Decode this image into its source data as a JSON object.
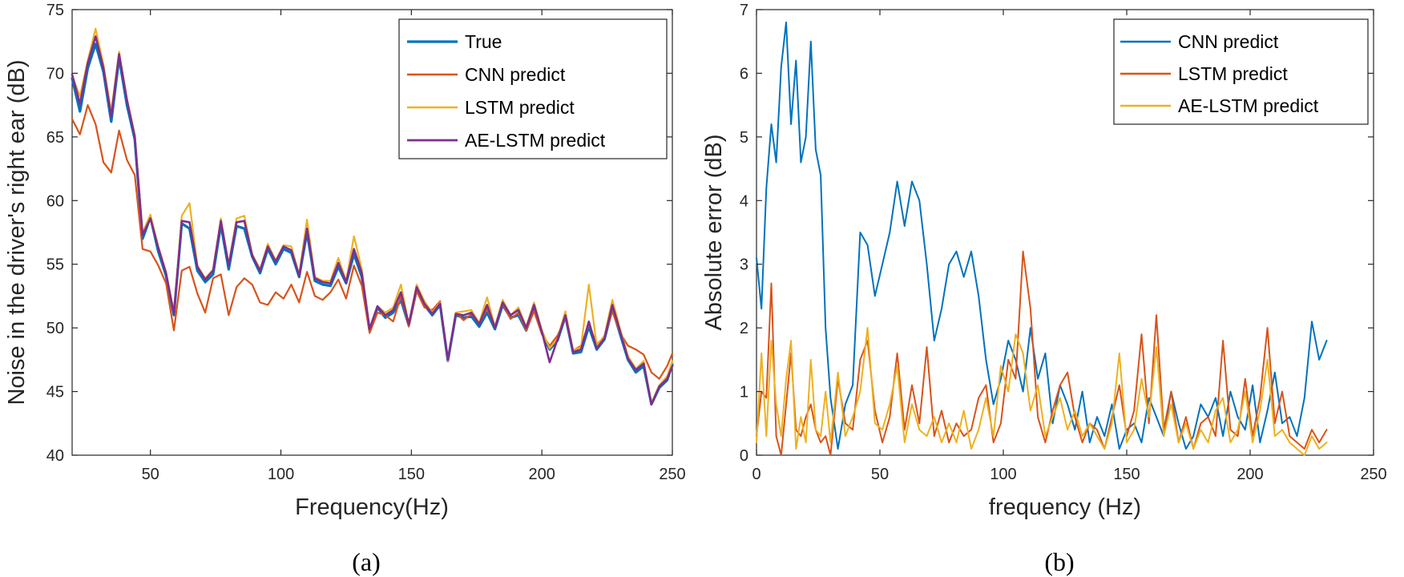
{
  "chart_data": [
    {
      "type": "line",
      "caption": "(a)",
      "xlabel": "Frequency(Hz)",
      "ylabel": "Noise in the driver's right ear (dB)",
      "xlim": [
        20,
        250
      ],
      "ylim": [
        40,
        75
      ],
      "xticks": [
        50,
        100,
        150,
        200,
        250
      ],
      "yticks": [
        40,
        45,
        50,
        55,
        60,
        65,
        70,
        75
      ],
      "grid": false,
      "legend_position": "top-right",
      "x": [
        20,
        23,
        26,
        29,
        32,
        35,
        38,
        41,
        44,
        47,
        50,
        53,
        56,
        59,
        62,
        65,
        68,
        71,
        74,
        77,
        80,
        83,
        86,
        89,
        92,
        95,
        98,
        101,
        104,
        107,
        110,
        113,
        116,
        119,
        122,
        125,
        128,
        131,
        134,
        137,
        140,
        143,
        146,
        149,
        152,
        155,
        158,
        161,
        164,
        167,
        170,
        173,
        176,
        179,
        182,
        185,
        188,
        191,
        194,
        197,
        200,
        203,
        206,
        209,
        212,
        215,
        218,
        221,
        224,
        227,
        230,
        233,
        236,
        239,
        242,
        245,
        248,
        250
      ],
      "series": [
        {
          "name": "True",
          "color": "#0072BD",
          "width": 3.2,
          "values": [
            69.6,
            67.0,
            70.4,
            72.3,
            70.1,
            66.2,
            71.2,
            67.5,
            64.8,
            57.0,
            58.7,
            56.0,
            54.1,
            51.0,
            58.2,
            57.8,
            54.5,
            53.6,
            54.2,
            58.1,
            54.6,
            58.0,
            57.8,
            55.6,
            54.3,
            56.2,
            55.0,
            56.2,
            55.9,
            54.0,
            57.5,
            53.7,
            53.4,
            53.3,
            54.8,
            53.5,
            55.8,
            54.0,
            49.8,
            51.6,
            50.8,
            51.2,
            52.2,
            50.2,
            53.0,
            51.8,
            51.0,
            51.8,
            47.4,
            51.0,
            50.8,
            50.9,
            50.1,
            51.2,
            49.9,
            51.8,
            50.8,
            51.0,
            49.8,
            51.5,
            49.6,
            48.3,
            49.0,
            50.9,
            48.0,
            48.1,
            50.1,
            48.3,
            49.1,
            51.5,
            49.5,
            47.5,
            46.5,
            47.0,
            44.0,
            45.3,
            45.9,
            47.1
          ]
        },
        {
          "name": "CNN predict",
          "color": "#D95319",
          "width": 2.2,
          "values": [
            66.4,
            65.2,
            67.5,
            66.0,
            63.0,
            62.2,
            65.5,
            63.2,
            62.0,
            56.2,
            56.0,
            54.9,
            53.5,
            49.8,
            54.5,
            54.8,
            52.7,
            51.2,
            53.9,
            54.2,
            51.0,
            53.2,
            53.9,
            53.4,
            52.0,
            51.8,
            52.8,
            52.3,
            53.4,
            52.0,
            54.4,
            52.5,
            52.2,
            52.8,
            53.8,
            52.3,
            54.9,
            53.3,
            49.6,
            51.2,
            51.0,
            50.5,
            52.5,
            50.1,
            52.9,
            51.6,
            51.4,
            52.1,
            47.4,
            51.2,
            50.6,
            51.1,
            50.3,
            51.5,
            50.1,
            51.9,
            50.7,
            51.2,
            49.8,
            51.3,
            49.5,
            48.6,
            49.4,
            50.8,
            48.2,
            48.6,
            50.3,
            48.7,
            49.3,
            51.3,
            49.6,
            48.6,
            48.3,
            47.9,
            46.5,
            46.0,
            47.0,
            48.0
          ]
        },
        {
          "name": "LSTM predict",
          "color": "#EDB120",
          "width": 2.2,
          "values": [
            69.8,
            68.2,
            71.0,
            73.5,
            70.7,
            67.0,
            71.7,
            68.0,
            65.2,
            57.5,
            58.9,
            56.4,
            54.4,
            51.2,
            58.8,
            59.8,
            54.9,
            53.9,
            54.6,
            58.6,
            55.0,
            58.6,
            58.8,
            55.8,
            54.6,
            56.6,
            55.3,
            56.5,
            56.4,
            54.2,
            58.5,
            54.0,
            53.7,
            53.7,
            55.5,
            53.7,
            57.2,
            54.6,
            50.0,
            51.7,
            51.2,
            51.6,
            53.4,
            50.3,
            53.4,
            52.1,
            51.2,
            52.0,
            47.4,
            51.2,
            51.3,
            51.4,
            50.4,
            52.4,
            50.1,
            52.2,
            51.0,
            51.6,
            50.1,
            52.0,
            49.8,
            48.4,
            49.2,
            51.3,
            48.2,
            48.5,
            53.4,
            48.6,
            49.4,
            52.2,
            49.9,
            47.8,
            46.8,
            47.4,
            44.1,
            45.5,
            46.2,
            47.4
          ]
        },
        {
          "name": "AE-LSTM predict",
          "color": "#7E2F8E",
          "width": 2.6,
          "values": [
            69.9,
            67.6,
            70.8,
            72.9,
            70.4,
            66.6,
            71.5,
            67.9,
            65.0,
            57.3,
            58.6,
            56.3,
            54.3,
            51.1,
            58.4,
            58.3,
            54.8,
            53.8,
            54.5,
            58.4,
            54.9,
            58.3,
            58.4,
            55.7,
            54.5,
            56.4,
            55.2,
            56.4,
            56.1,
            54.1,
            57.8,
            53.9,
            53.6,
            53.5,
            55.1,
            53.6,
            56.2,
            54.3,
            49.9,
            51.7,
            51.0,
            51.4,
            52.8,
            50.3,
            53.2,
            51.9,
            51.1,
            51.9,
            47.5,
            51.1,
            51.0,
            51.2,
            50.3,
            51.8,
            50.0,
            52.0,
            51.0,
            51.4,
            50.0,
            51.8,
            49.7,
            47.3,
            49.1,
            51.0,
            48.1,
            48.3,
            50.5,
            48.4,
            49.2,
            51.8,
            49.7,
            47.6,
            46.7,
            47.2,
            44.0,
            45.4,
            46.0,
            47.0
          ]
        }
      ]
    },
    {
      "type": "line",
      "caption": "(b)",
      "xlabel": "frequency (Hz)",
      "ylabel": "Absolute error (dB)",
      "xlim": [
        0,
        250
      ],
      "ylim": [
        0,
        7
      ],
      "xticks": [
        0,
        50,
        100,
        150,
        200,
        250
      ],
      "yticks": [
        0,
        1,
        2,
        3,
        4,
        5,
        6,
        7
      ],
      "grid": false,
      "legend_position": "top-right",
      "x": [
        0,
        2,
        4,
        6,
        8,
        10,
        12,
        14,
        16,
        18,
        20,
        22,
        24,
        26,
        28,
        30,
        33,
        36,
        39,
        42,
        45,
        48,
        51,
        54,
        57,
        60,
        63,
        66,
        69,
        72,
        75,
        78,
        81,
        84,
        87,
        90,
        93,
        96,
        99,
        102,
        105,
        108,
        111,
        114,
        117,
        120,
        123,
        126,
        129,
        132,
        135,
        138,
        141,
        144,
        147,
        150,
        153,
        156,
        159,
        162,
        165,
        168,
        171,
        174,
        177,
        180,
        183,
        186,
        189,
        192,
        195,
        198,
        201,
        204,
        207,
        210,
        213,
        216,
        219,
        222,
        225,
        228,
        231
      ],
      "series": [
        {
          "name": "CNN predict",
          "color": "#0072BD",
          "width": 2.0,
          "values": [
            3.1,
            2.3,
            4.2,
            5.2,
            4.6,
            6.1,
            6.8,
            5.2,
            6.2,
            4.6,
            5.0,
            6.5,
            4.8,
            4.4,
            2.0,
            0.9,
            0.1,
            0.8,
            1.1,
            3.5,
            3.3,
            2.5,
            3.0,
            3.5,
            4.3,
            3.6,
            4.3,
            4.0,
            3.0,
            1.8,
            2.3,
            3.0,
            3.2,
            2.8,
            3.2,
            2.5,
            1.5,
            0.8,
            1.2,
            1.8,
            1.5,
            1.0,
            2.0,
            1.2,
            1.6,
            0.5,
            1.1,
            0.8,
            0.4,
            1.0,
            0.2,
            0.6,
            0.3,
            0.8,
            0.1,
            0.4,
            0.5,
            0.2,
            0.9,
            0.6,
            0.3,
            1.0,
            0.5,
            0.1,
            0.3,
            0.8,
            0.6,
            0.9,
            0.3,
            1.0,
            0.6,
            0.4,
            1.1,
            0.2,
            0.7,
            1.3,
            0.5,
            0.6,
            0.3,
            0.9,
            2.1,
            1.5,
            1.8
          ]
        },
        {
          "name": "LSTM predict",
          "color": "#D95319",
          "width": 2.0,
          "values": [
            0.3,
            1.0,
            0.9,
            2.7,
            0.3,
            0.0,
            0.8,
            1.6,
            0.4,
            0.3,
            0.6,
            0.8,
            0.4,
            0.2,
            0.3,
            0.0,
            1.2,
            0.5,
            0.4,
            1.5,
            1.8,
            0.7,
            0.2,
            0.6,
            1.6,
            0.4,
            1.1,
            0.5,
            1.7,
            0.3,
            0.7,
            0.2,
            0.5,
            0.3,
            0.4,
            0.9,
            1.1,
            0.2,
            0.5,
            1.5,
            1.2,
            3.2,
            2.3,
            0.6,
            0.2,
            0.7,
            1.1,
            1.3,
            0.6,
            0.2,
            0.5,
            0.4,
            0.1,
            0.6,
            1.1,
            0.3,
            0.7,
            1.9,
            0.5,
            2.2,
            0.4,
            1.0,
            0.2,
            0.6,
            0.1,
            0.5,
            0.6,
            0.3,
            1.8,
            0.4,
            0.3,
            1.2,
            0.3,
            0.9,
            2.0,
            0.5,
            1.0,
            0.3,
            0.2,
            0.1,
            0.4,
            0.2,
            0.4
          ]
        },
        {
          "name": "AE-LSTM predict",
          "color": "#EDB120",
          "width": 2.0,
          "values": [
            0.2,
            1.6,
            0.3,
            1.8,
            0.8,
            0.3,
            1.2,
            1.8,
            0.1,
            0.6,
            0.2,
            1.5,
            0.4,
            0.3,
            1.0,
            0.2,
            1.3,
            0.3,
            0.6,
            1.0,
            2.0,
            0.5,
            0.4,
            0.8,
            1.4,
            0.2,
            0.8,
            0.4,
            0.3,
            0.6,
            0.2,
            0.5,
            0.2,
            0.7,
            0.1,
            0.4,
            0.9,
            0.3,
            1.4,
            1.0,
            1.9,
            1.6,
            0.7,
            1.1,
            0.3,
            0.6,
            0.9,
            0.4,
            0.7,
            0.3,
            0.5,
            0.3,
            0.1,
            0.5,
            1.6,
            0.2,
            0.4,
            1.2,
            0.6,
            1.7,
            0.3,
            0.8,
            0.2,
            0.5,
            0.1,
            0.4,
            0.2,
            0.7,
            0.9,
            0.2,
            0.4,
            1.0,
            0.2,
            0.7,
            1.5,
            0.3,
            0.4,
            0.2,
            0.1,
            0.0,
            0.3,
            0.1,
            0.2
          ]
        }
      ]
    }
  ]
}
